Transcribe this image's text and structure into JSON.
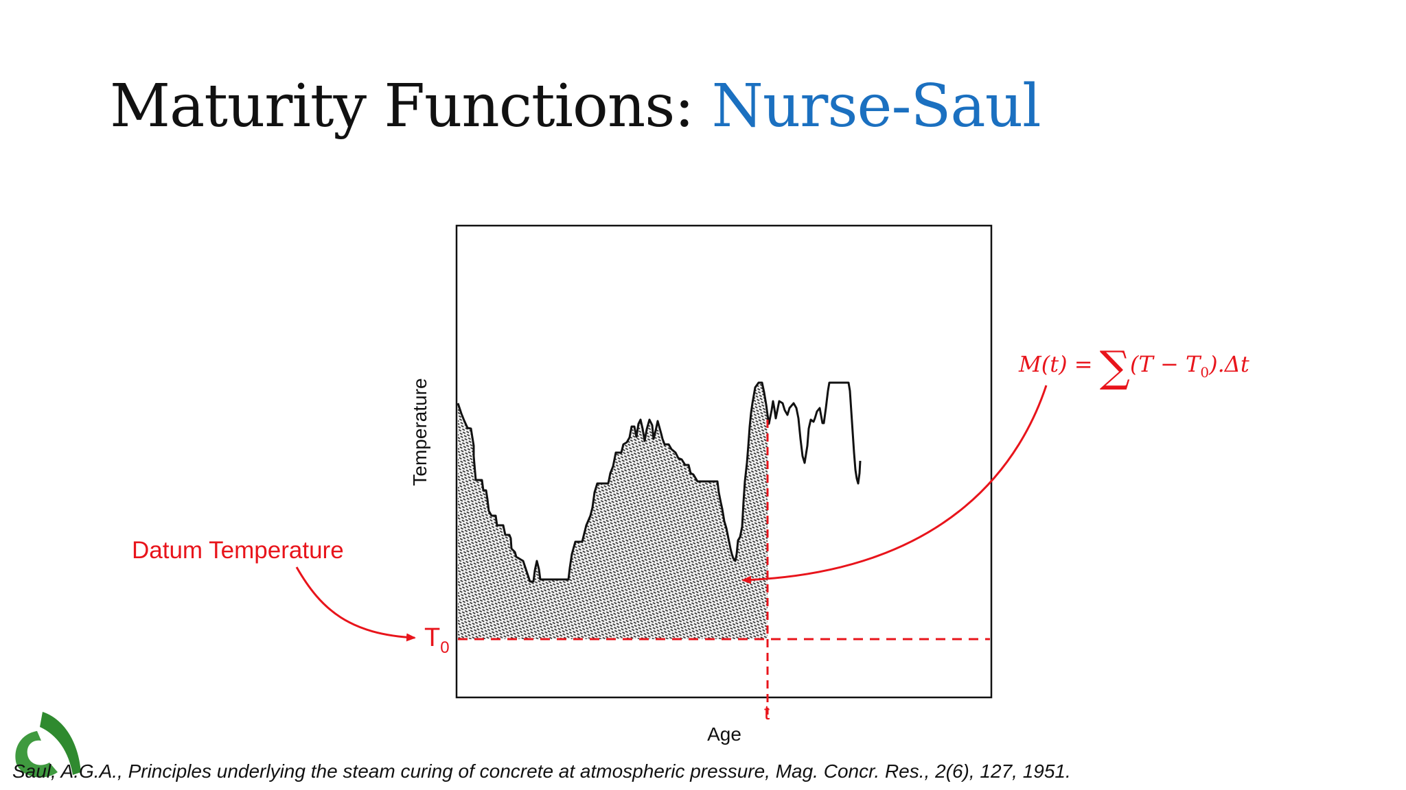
{
  "title": {
    "prefix": "Maturity Functions: ",
    "accent": "Nurse-Saul"
  },
  "diagram": {
    "y_axis_label": "Temperature",
    "x_axis_label": "Age",
    "datum_label": "Datum Temperature",
    "datum_symbol": "T",
    "datum_subscript": "0",
    "time_marker_label": "t",
    "formula": {
      "lhs": "M(t) = ",
      "sigma": "∑",
      "rhs_open": "(T − T",
      "rhs_sub": "0",
      "rhs_close": ").Δt"
    }
  },
  "citation": "Saul, A.G.A., Principles underlying the steam curing of concrete at atmospheric pressure, Mag. Concr. Res., 2(6), 127, 1951.",
  "colors": {
    "accent_blue": "#1b70c0",
    "annotation_red": "#e8141b",
    "curve_black": "#111111",
    "logo_green": "#2f8a2f"
  }
}
